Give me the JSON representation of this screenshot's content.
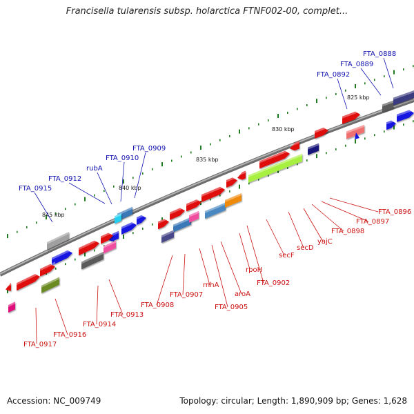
{
  "title": "Francisella tularensis subsp. holarctica FTNF002-00, complet...",
  "footer": {
    "accession": "Accession: NC_009749",
    "topology": "Topology: circular; Length: 1,890,909 bp; Genes: 1,628"
  },
  "colors": {
    "backbone": "#8a8a8a",
    "tick": "#1e7a1e",
    "label_top": "#1010b0",
    "label_bottom": "#cc1010",
    "kbp": "#111111"
  },
  "kbp_labels": [
    "825 kbp",
    "830 kbp",
    "835 kbp",
    "840 kbp",
    "845 kbp"
  ],
  "top_labels": [
    "FTA_0888",
    "FTA_0889",
    "FTA_0892",
    "FTA_0909",
    "FTA_0910",
    "rubA",
    "FTA_0912",
    "FTA_0915"
  ],
  "bottom_labels": [
    "FTA_0896",
    "FTA_0897",
    "FTA_0898",
    "yajC",
    "secD",
    "secF",
    "FTA_0902",
    "rpoH",
    "aroA",
    "FTA_0905",
    "rnhA",
    "FTA_0907",
    "FTA_0908",
    "FTA_0913",
    "FTA_0914",
    "FTA_0916",
    "FTA_0917"
  ]
}
